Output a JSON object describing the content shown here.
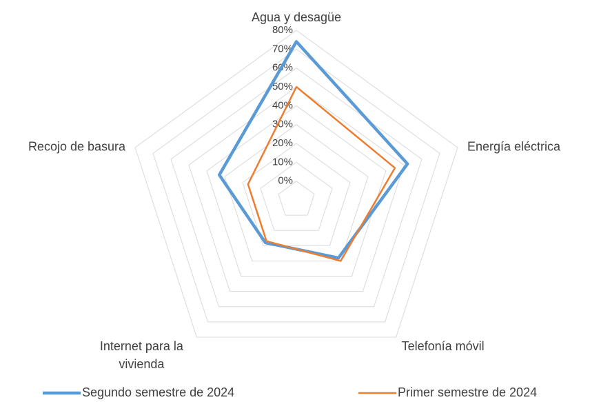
{
  "chart_data": {
    "type": "radar",
    "categories": [
      "Agua y desagüe",
      "Energía eléctrica",
      "Telefonía móvil",
      "Internet para la vivienda",
      "Recojo de basura"
    ],
    "series": [
      {
        "name": "Segundo semestre de 2024",
        "color": "#5b9bd5",
        "values": [
          74,
          52,
          28,
          18,
          33
        ]
      },
      {
        "name": "Primer semestre de 2024",
        "color": "#ed7d31",
        "values": [
          50,
          45,
          30,
          17,
          17
        ]
      }
    ],
    "ylim": [
      -10,
      80
    ],
    "yticks": [
      {
        "value": 0,
        "label": "0%"
      },
      {
        "value": 10,
        "label": "10%"
      },
      {
        "value": 20,
        "label": "20%"
      },
      {
        "value": 30,
        "label": "30%"
      },
      {
        "value": 40,
        "label": "40%"
      },
      {
        "value": 50,
        "label": "50%"
      },
      {
        "value": 60,
        "label": "60%"
      },
      {
        "value": 70,
        "label": "70%"
      },
      {
        "value": 80,
        "label": "80%"
      }
    ],
    "grid": true
  }
}
